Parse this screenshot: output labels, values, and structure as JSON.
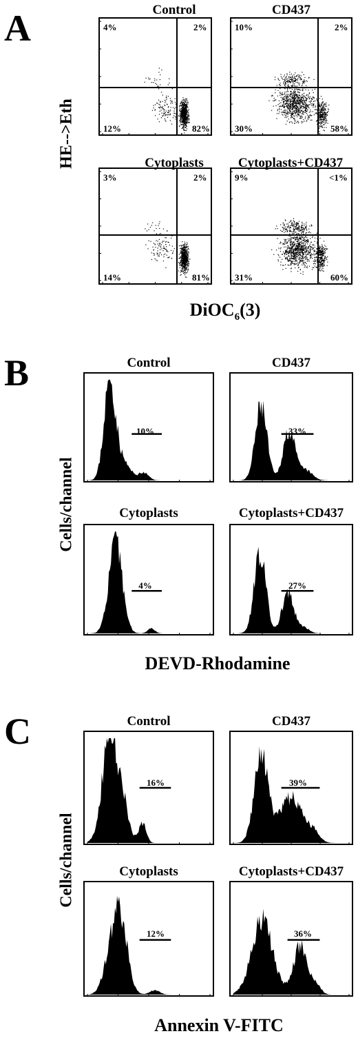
{
  "panels": {
    "A": {
      "letter": "A",
      "ylabel": "HE-->Eth",
      "xlabel_main": "DiOC",
      "xlabel_sub": "6",
      "xlabel_tail": "(3)",
      "plots": [
        {
          "title": "Control",
          "ul": "4%",
          "ur": "2%",
          "ll": "12%",
          "lr": "82%"
        },
        {
          "title": "CD437",
          "ul": "10%",
          "ur": "2%",
          "ll": "30%",
          "lr": "58%"
        },
        {
          "title": "Cytoplasts",
          "ul": "3%",
          "ur": "2%",
          "ll": "14%",
          "lr": "81%"
        },
        {
          "title": "Cytoplasts+CD437",
          "ul": "9%",
          "ur": "<1%",
          "ll": "31%",
          "lr": "60%"
        }
      ]
    },
    "B": {
      "letter": "B",
      "ylabel": "Cells/channel",
      "xlabel": "DEVD-Rhodamine",
      "plots": [
        {
          "title": "Control",
          "pct": "10%"
        },
        {
          "title": "CD437",
          "pct": "33%"
        },
        {
          "title": "Cytoplasts",
          "pct": "4%"
        },
        {
          "title": "Cytoplasts+CD437",
          "pct": "27%"
        }
      ]
    },
    "C": {
      "letter": "C",
      "ylabel": "Cells/channel",
      "xlabel": "Annexin V-FITC",
      "plots": [
        {
          "title": "Control",
          "pct": "16%"
        },
        {
          "title": "CD437",
          "pct": "39%"
        },
        {
          "title": "Cytoplasts",
          "pct": "12%"
        },
        {
          "title": "Cytoplasts+CD437",
          "pct": "36%"
        }
      ]
    }
  },
  "chart_data": [
    {
      "type": "scatter",
      "title": "Control",
      "xlabel": "DiOC6(3)",
      "ylabel": "HE-->Eth",
      "xscale": "log",
      "yscale": "log",
      "quadrants": {
        "upper_left": 4,
        "upper_right": 2,
        "lower_left": 12,
        "lower_right": 82
      }
    },
    {
      "type": "scatter",
      "title": "CD437",
      "xlabel": "DiOC6(3)",
      "ylabel": "HE-->Eth",
      "xscale": "log",
      "yscale": "log",
      "quadrants": {
        "upper_left": 10,
        "upper_right": 2,
        "lower_left": 30,
        "lower_right": 58
      }
    },
    {
      "type": "scatter",
      "title": "Cytoplasts",
      "xlabel": "DiOC6(3)",
      "ylabel": "HE-->Eth",
      "xscale": "log",
      "yscale": "log",
      "quadrants": {
        "upper_left": 3,
        "upper_right": 2,
        "lower_left": 14,
        "lower_right": 81
      }
    },
    {
      "type": "scatter",
      "title": "Cytoplasts+CD437",
      "xlabel": "DiOC6(3)",
      "ylabel": "HE-->Eth",
      "xscale": "log",
      "yscale": "log",
      "quadrants": {
        "upper_left": 9,
        "upper_right": "<1",
        "lower_left": 31,
        "lower_right": 60
      }
    },
    {
      "type": "area",
      "title": "Control",
      "xlabel": "DEVD-Rhodamine",
      "ylabel": "Cells/channel",
      "xscale": "log",
      "gated_percent": 10
    },
    {
      "type": "area",
      "title": "CD437",
      "xlabel": "DEVD-Rhodamine",
      "ylabel": "Cells/channel",
      "xscale": "log",
      "gated_percent": 33
    },
    {
      "type": "area",
      "title": "Cytoplasts",
      "xlabel": "DEVD-Rhodamine",
      "ylabel": "Cells/channel",
      "xscale": "log",
      "gated_percent": 4
    },
    {
      "type": "area",
      "title": "Cytoplasts+CD437",
      "xlabel": "DEVD-Rhodamine",
      "ylabel": "Cells/channel",
      "xscale": "log",
      "gated_percent": 27
    },
    {
      "type": "area",
      "title": "Control",
      "xlabel": "Annexin V-FITC",
      "ylabel": "Cells/channel",
      "xscale": "log",
      "gated_percent": 16
    },
    {
      "type": "area",
      "title": "CD437",
      "xlabel": "Annexin V-FITC",
      "ylabel": "Cells/channel",
      "xscale": "log",
      "gated_percent": 39
    },
    {
      "type": "area",
      "title": "Cytoplasts",
      "xlabel": "Annexin V-FITC",
      "ylabel": "Cells/channel",
      "xscale": "log",
      "gated_percent": 12
    },
    {
      "type": "area",
      "title": "Cytoplasts+CD437",
      "xlabel": "Annexin V-FITC",
      "ylabel": "Cells/channel",
      "xscale": "log",
      "gated_percent": 36
    }
  ]
}
